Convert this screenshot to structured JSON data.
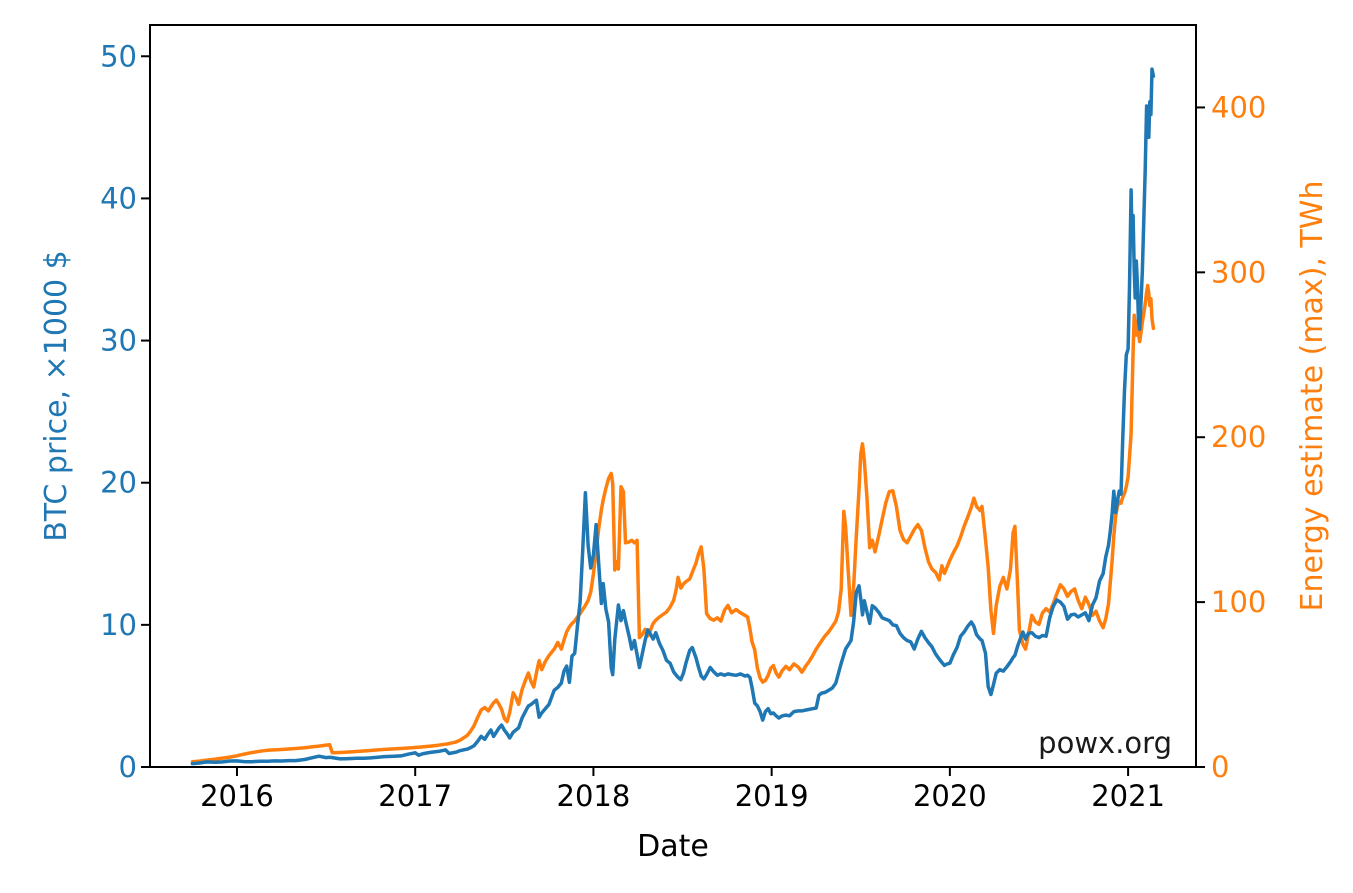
{
  "figure": {
    "watermark": "powx.org",
    "background_color": "#ffffff",
    "frame_color": "#000000",
    "x_axis": {
      "label": "Date",
      "tick_years": [
        2016,
        2017,
        2018,
        2019,
        2020,
        2021
      ],
      "tick_color": "#000000"
    },
    "y_axis_left": {
      "label": "BTC price, ×1000 $",
      "color": "#1f77b4",
      "tick_values": [
        0,
        10,
        20,
        30,
        40,
        50
      ],
      "axis_max": 52.2
    },
    "y_axis_right": {
      "label": "Energy estimate (max), TWh",
      "color": "#ff7f0e",
      "tick_values": [
        0,
        100,
        200,
        300,
        400
      ],
      "axis_max": 450
    }
  },
  "chart_data": {
    "type": "line",
    "title": "",
    "xlabel": "Date",
    "grid": false,
    "legend": "none",
    "x_units": "decimal_year",
    "x_range": [
      2015.512,
      2021.381
    ],
    "series": [
      {
        "name": "BTC price, ×1000 $",
        "axis": "left",
        "color": "#1f77b4",
        "unit": "thousand USD",
        "ylim": [
          0,
          52.2
        ]
      },
      {
        "name": "Energy estimate (max), TWh",
        "axis": "right",
        "color": "#ff7f0e",
        "unit": "TWh",
        "ylim": [
          0,
          450
        ]
      }
    ],
    "points_format": [
      "year_decimal",
      "btc_price_thousand_usd",
      "energy_estimate_twh"
    ],
    "points": [
      [
        2015.75,
        0.24,
        3.2
      ],
      [
        2015.79,
        0.28,
        3.6
      ],
      [
        2015.83,
        0.36,
        4.2
      ],
      [
        2015.88,
        0.33,
        4.8
      ],
      [
        2015.92,
        0.36,
        5.4
      ],
      [
        2015.96,
        0.42,
        6.0
      ],
      [
        2016.0,
        0.43,
        6.8
      ],
      [
        2016.04,
        0.38,
        7.8
      ],
      [
        2016.08,
        0.37,
        8.7
      ],
      [
        2016.13,
        0.41,
        9.6
      ],
      [
        2016.17,
        0.41,
        10.1
      ],
      [
        2016.21,
        0.43,
        10.4
      ],
      [
        2016.25,
        0.42,
        10.6
      ],
      [
        2016.29,
        0.45,
        10.9
      ],
      [
        2016.33,
        0.45,
        11.2
      ],
      [
        2016.38,
        0.53,
        11.7
      ],
      [
        2016.42,
        0.65,
        12.2
      ],
      [
        2016.46,
        0.76,
        12.7
      ],
      [
        2016.5,
        0.66,
        13.3
      ],
      [
        2016.52,
        0.68,
        13.5
      ],
      [
        2016.535,
        0.66,
        8.6
      ],
      [
        2016.58,
        0.57,
        8.8
      ],
      [
        2016.63,
        0.59,
        9.1
      ],
      [
        2016.67,
        0.61,
        9.4
      ],
      [
        2016.71,
        0.61,
        9.7
      ],
      [
        2016.75,
        0.64,
        10.0
      ],
      [
        2016.79,
        0.69,
        10.4
      ],
      [
        2016.83,
        0.73,
        10.7
      ],
      [
        2016.88,
        0.75,
        11.0
      ],
      [
        2016.92,
        0.78,
        11.2
      ],
      [
        2016.96,
        0.9,
        11.5
      ],
      [
        2017.0,
        1.0,
        11.8
      ],
      [
        2017.02,
        0.82,
        12.0
      ],
      [
        2017.04,
        0.92,
        12.2
      ],
      [
        2017.08,
        1.02,
        12.6
      ],
      [
        2017.13,
        1.1,
        13.2
      ],
      [
        2017.17,
        1.2,
        13.8
      ],
      [
        2017.19,
        0.95,
        14.2
      ],
      [
        2017.23,
        1.05,
        15.2
      ],
      [
        2017.25,
        1.15,
        16.2
      ],
      [
        2017.27,
        1.2,
        17.5
      ],
      [
        2017.29,
        1.25,
        19.0
      ],
      [
        2017.31,
        1.35,
        21.5
      ],
      [
        2017.33,
        1.5,
        25.0
      ],
      [
        2017.35,
        1.8,
        30.0
      ],
      [
        2017.37,
        2.15,
        34.5
      ],
      [
        2017.39,
        1.95,
        36.0
      ],
      [
        2017.41,
        2.35,
        34.0
      ],
      [
        2017.425,
        2.6,
        36.5
      ],
      [
        2017.44,
        2.15,
        39.0
      ],
      [
        2017.455,
        2.45,
        40.6
      ],
      [
        2017.47,
        2.75,
        38.0
      ],
      [
        2017.485,
        2.95,
        35.0
      ],
      [
        2017.5,
        2.6,
        29.5
      ],
      [
        2017.515,
        2.35,
        27.5
      ],
      [
        2017.53,
        2.05,
        33.0
      ],
      [
        2017.55,
        2.45,
        45.0
      ],
      [
        2017.565,
        2.6,
        42.0
      ],
      [
        2017.58,
        2.75,
        38.0
      ],
      [
        2017.6,
        3.45,
        47.0
      ],
      [
        2017.62,
        3.95,
        53.0
      ],
      [
        2017.635,
        4.3,
        57.0
      ],
      [
        2017.65,
        4.4,
        52.0
      ],
      [
        2017.665,
        4.55,
        48.5
      ],
      [
        2017.68,
        4.7,
        57.0
      ],
      [
        2017.695,
        3.5,
        64.5
      ],
      [
        2017.71,
        3.8,
        59.0
      ],
      [
        2017.73,
        4.1,
        64.0
      ],
      [
        2017.75,
        4.4,
        67.5
      ],
      [
        2017.78,
        5.4,
        71.5
      ],
      [
        2017.8,
        5.6,
        75.5
      ],
      [
        2017.82,
        5.9,
        71.5
      ],
      [
        2017.835,
        6.75,
        77.0
      ],
      [
        2017.85,
        7.1,
        82.0
      ],
      [
        2017.865,
        5.95,
        85.0
      ],
      [
        2017.88,
        7.8,
        87.0
      ],
      [
        2017.895,
        8.0,
        88.5
      ],
      [
        2017.91,
        9.9,
        91.0
      ],
      [
        2017.925,
        11.6,
        93.0
      ],
      [
        2017.94,
        15.2,
        95.5
      ],
      [
        2017.955,
        19.3,
        98.0
      ],
      [
        2017.97,
        15.6,
        101.0
      ],
      [
        2017.985,
        14.0,
        106.0
      ],
      [
        2018.0,
        14.9,
        117.0
      ],
      [
        2018.015,
        17.05,
        131.0
      ],
      [
        2018.03,
        14.2,
        145.0
      ],
      [
        2018.045,
        11.5,
        156.0
      ],
      [
        2018.055,
        12.9,
        162.0
      ],
      [
        2018.07,
        11.1,
        169.0
      ],
      [
        2018.085,
        10.2,
        175.0
      ],
      [
        2018.1,
        7.0,
        178.0
      ],
      [
        2018.108,
        6.5,
        172.0
      ],
      [
        2018.12,
        9.0,
        119.5
      ],
      [
        2018.13,
        10.2,
        124.5
      ],
      [
        2018.14,
        11.4,
        120.0
      ],
      [
        2018.155,
        10.3,
        170.0
      ],
      [
        2018.168,
        11.0,
        167.0
      ],
      [
        2018.18,
        10.3,
        136.0
      ],
      [
        2018.2,
        9.2,
        136.5
      ],
      [
        2018.215,
        8.3,
        137.5
      ],
      [
        2018.23,
        8.9,
        136.0
      ],
      [
        2018.245,
        7.9,
        137.5
      ],
      [
        2018.258,
        7.0,
        78.5
      ],
      [
        2018.275,
        8.0,
        80.5
      ],
      [
        2018.29,
        8.9,
        83.5
      ],
      [
        2018.305,
        9.65,
        79.5
      ],
      [
        2018.32,
        9.35,
        83.0
      ],
      [
        2018.335,
        9.0,
        87.0
      ],
      [
        2018.35,
        9.45,
        89.0
      ],
      [
        2018.37,
        8.7,
        91.0
      ],
      [
        2018.39,
        8.2,
        92.5
      ],
      [
        2018.41,
        7.5,
        94.0
      ],
      [
        2018.43,
        7.3,
        97.0
      ],
      [
        2018.45,
        6.7,
        101.0
      ],
      [
        2018.465,
        6.45,
        108.0
      ],
      [
        2018.475,
        6.3,
        115.0
      ],
      [
        2018.49,
        6.15,
        108.5
      ],
      [
        2018.505,
        6.6,
        111.0
      ],
      [
        2018.52,
        7.35,
        112.5
      ],
      [
        2018.54,
        8.2,
        114.0
      ],
      [
        2018.555,
        8.4,
        118.0
      ],
      [
        2018.575,
        7.7,
        123.5
      ],
      [
        2018.59,
        7.0,
        129.5
      ],
      [
        2018.605,
        6.4,
        133.5
      ],
      [
        2018.62,
        6.2,
        120.0
      ],
      [
        2018.635,
        6.5,
        93.0
      ],
      [
        2018.655,
        7.0,
        90.0
      ],
      [
        2018.675,
        6.7,
        89.0
      ],
      [
        2018.695,
        6.45,
        90.5
      ],
      [
        2018.715,
        6.55,
        88.5
      ],
      [
        2018.735,
        6.45,
        95.0
      ],
      [
        2018.755,
        6.55,
        98.0
      ],
      [
        2018.775,
        6.5,
        93.5
      ],
      [
        2018.8,
        6.45,
        95.5
      ],
      [
        2018.825,
        6.55,
        93.5
      ],
      [
        2018.85,
        6.4,
        92.0
      ],
      [
        2018.865,
        6.45,
        91.0
      ],
      [
        2018.878,
        6.3,
        84.0
      ],
      [
        2018.89,
        5.6,
        76.0
      ],
      [
        2018.905,
        4.5,
        71.0
      ],
      [
        2018.92,
        4.3,
        60.0
      ],
      [
        2018.935,
        3.9,
        54.0
      ],
      [
        2018.95,
        3.3,
        51.5
      ],
      [
        2018.965,
        3.9,
        52.5
      ],
      [
        2018.98,
        4.1,
        55.5
      ],
      [
        2018.995,
        3.75,
        60.0
      ],
      [
        2019.01,
        3.8,
        61.5
      ],
      [
        2019.025,
        3.6,
        57.0
      ],
      [
        2019.04,
        3.45,
        54.5
      ],
      [
        2019.06,
        3.6,
        58.5
      ],
      [
        2019.08,
        3.65,
        61.0
      ],
      [
        2019.1,
        3.6,
        59.0
      ],
      [
        2019.125,
        3.9,
        62.5
      ],
      [
        2019.15,
        3.95,
        60.5
      ],
      [
        2019.17,
        3.95,
        57.5
      ],
      [
        2019.19,
        4.0,
        61.0
      ],
      [
        2019.21,
        4.05,
        64.0
      ],
      [
        2019.23,
        4.1,
        67.5
      ],
      [
        2019.25,
        4.15,
        71.5
      ],
      [
        2019.265,
        5.05,
        74.0
      ],
      [
        2019.28,
        5.2,
        76.5
      ],
      [
        2019.3,
        5.25,
        79.5
      ],
      [
        2019.32,
        5.4,
        82.0
      ],
      [
        2019.34,
        5.55,
        85.0
      ],
      [
        2019.36,
        5.9,
        88.5
      ],
      [
        2019.375,
        6.6,
        94.0
      ],
      [
        2019.39,
        7.3,
        108.0
      ],
      [
        2019.405,
        7.9,
        155.0
      ],
      [
        2019.415,
        8.3,
        146.0
      ],
      [
        2019.43,
        8.6,
        118.0
      ],
      [
        2019.445,
        8.9,
        92.0
      ],
      [
        2019.46,
        10.2,
        109.0
      ],
      [
        2019.475,
        12.3,
        140.0
      ],
      [
        2019.49,
        12.75,
        168.0
      ],
      [
        2019.5,
        11.8,
        190.0
      ],
      [
        2019.51,
        10.7,
        196.0
      ],
      [
        2019.52,
        11.7,
        186.0
      ],
      [
        2019.535,
        10.9,
        163.0
      ],
      [
        2019.55,
        10.1,
        133.0
      ],
      [
        2019.565,
        11.35,
        137.5
      ],
      [
        2019.58,
        11.2,
        130.5
      ],
      [
        2019.6,
        10.9,
        140.0
      ],
      [
        2019.62,
        10.5,
        150.0
      ],
      [
        2019.64,
        10.4,
        160.0
      ],
      [
        2019.66,
        10.3,
        167.0
      ],
      [
        2019.68,
        10.0,
        167.5
      ],
      [
        2019.7,
        9.95,
        158.0
      ],
      [
        2019.72,
        9.4,
        143.5
      ],
      [
        2019.74,
        9.1,
        138.0
      ],
      [
        2019.76,
        8.9,
        136.0
      ],
      [
        2019.78,
        8.8,
        140.0
      ],
      [
        2019.8,
        8.3,
        144.0
      ],
      [
        2019.82,
        9.0,
        147.0
      ],
      [
        2019.84,
        9.55,
        143.5
      ],
      [
        2019.86,
        9.1,
        133.0
      ],
      [
        2019.88,
        8.75,
        124.5
      ],
      [
        2019.9,
        8.45,
        120.0
      ],
      [
        2019.92,
        7.95,
        118.0
      ],
      [
        2019.94,
        7.6,
        113.5
      ],
      [
        2019.955,
        7.35,
        122.0
      ],
      [
        2019.97,
        7.15,
        117.5
      ],
      [
        2019.985,
        7.25,
        121.5
      ],
      [
        2020.0,
        7.3,
        125.5
      ],
      [
        2020.02,
        7.9,
        130.0
      ],
      [
        2020.04,
        8.4,
        134.0
      ],
      [
        2020.06,
        9.2,
        139.5
      ],
      [
        2020.08,
        9.5,
        146.0
      ],
      [
        2020.1,
        9.9,
        151.5
      ],
      [
        2020.12,
        10.2,
        157.5
      ],
      [
        2020.135,
        9.9,
        163.0
      ],
      [
        2020.15,
        9.3,
        158.0
      ],
      [
        2020.17,
        9.0,
        155.5
      ],
      [
        2020.18,
        8.9,
        158.0
      ],
      [
        2020.2,
        8.0,
        138.0
      ],
      [
        2020.215,
        5.65,
        121.0
      ],
      [
        2020.23,
        5.1,
        95.0
      ],
      [
        2020.245,
        5.8,
        81.0
      ],
      [
        2020.26,
        6.6,
        98.0
      ],
      [
        2020.28,
        6.85,
        109.5
      ],
      [
        2020.3,
        6.75,
        115.0
      ],
      [
        2020.32,
        7.05,
        108.0
      ],
      [
        2020.34,
        7.4,
        120.0
      ],
      [
        2020.355,
        7.7,
        142.0
      ],
      [
        2020.365,
        7.85,
        146.0
      ],
      [
        2020.38,
        8.5,
        110.0
      ],
      [
        2020.39,
        8.85,
        83.0
      ],
      [
        2020.41,
        9.5,
        74.5
      ],
      [
        2020.425,
        9.0,
        71.5
      ],
      [
        2020.44,
        9.4,
        80.0
      ],
      [
        2020.46,
        9.45,
        92.0
      ],
      [
        2020.48,
        9.2,
        88.0
      ],
      [
        2020.5,
        9.1,
        86.5
      ],
      [
        2020.52,
        9.25,
        93.5
      ],
      [
        2020.54,
        9.2,
        96.0
      ],
      [
        2020.56,
        10.5,
        94.0
      ],
      [
        2020.58,
        11.3,
        99.0
      ],
      [
        2020.6,
        11.75,
        105.0
      ],
      [
        2020.62,
        11.6,
        110.5
      ],
      [
        2020.64,
        11.3,
        108.0
      ],
      [
        2020.66,
        10.4,
        103.5
      ],
      [
        2020.68,
        10.7,
        106.5
      ],
      [
        2020.7,
        10.75,
        108.0
      ],
      [
        2020.72,
        10.55,
        101.0
      ],
      [
        2020.74,
        10.7,
        96.0
      ],
      [
        2020.76,
        10.85,
        103.0
      ],
      [
        2020.78,
        10.3,
        98.5
      ],
      [
        2020.8,
        11.4,
        92.0
      ],
      [
        2020.82,
        11.9,
        94.5
      ],
      [
        2020.84,
        13.1,
        88.5
      ],
      [
        2020.86,
        13.6,
        84.5
      ],
      [
        2020.875,
        14.8,
        90.0
      ],
      [
        2020.89,
        15.6,
        99.0
      ],
      [
        2020.9,
        16.6,
        112.0
      ],
      [
        2020.91,
        17.8,
        125.0
      ],
      [
        2020.92,
        19.4,
        140.0
      ],
      [
        2020.93,
        17.9,
        152.0
      ],
      [
        2020.94,
        18.7,
        158.0
      ],
      [
        2020.95,
        19.4,
        161.0
      ],
      [
        2020.96,
        19.2,
        160.0
      ],
      [
        2020.97,
        23.0,
        163.5
      ],
      [
        2020.98,
        26.5,
        166.0
      ],
      [
        2020.99,
        29.0,
        170.0
      ],
      [
        2021.0,
        29.4,
        176.0
      ],
      [
        2021.008,
        33.8,
        188.0
      ],
      [
        2021.017,
        40.6,
        202.0
      ],
      [
        2021.022,
        37.2,
        225.0
      ],
      [
        2021.028,
        38.8,
        252.0
      ],
      [
        2021.034,
        35.0,
        274.0
      ],
      [
        2021.04,
        33.0,
        268.0
      ],
      [
        2021.046,
        35.6,
        262.0
      ],
      [
        2021.052,
        34.0,
        270.0
      ],
      [
        2021.058,
        31.5,
        263.0
      ],
      [
        2021.065,
        30.8,
        258.0
      ],
      [
        2021.072,
        32.5,
        263.0
      ],
      [
        2021.08,
        35.0,
        270.0
      ],
      [
        2021.088,
        38.5,
        275.0
      ],
      [
        2021.096,
        42.0,
        281.0
      ],
      [
        2021.104,
        46.5,
        288.0
      ],
      [
        2021.11,
        44.8,
        292.0
      ],
      [
        2021.116,
        44.3,
        287.0
      ],
      [
        2021.122,
        46.8,
        280.0
      ],
      [
        2021.128,
        45.9,
        284.0
      ],
      [
        2021.134,
        49.1,
        272.0
      ],
      [
        2021.142,
        48.6,
        266.0
      ]
    ]
  }
}
